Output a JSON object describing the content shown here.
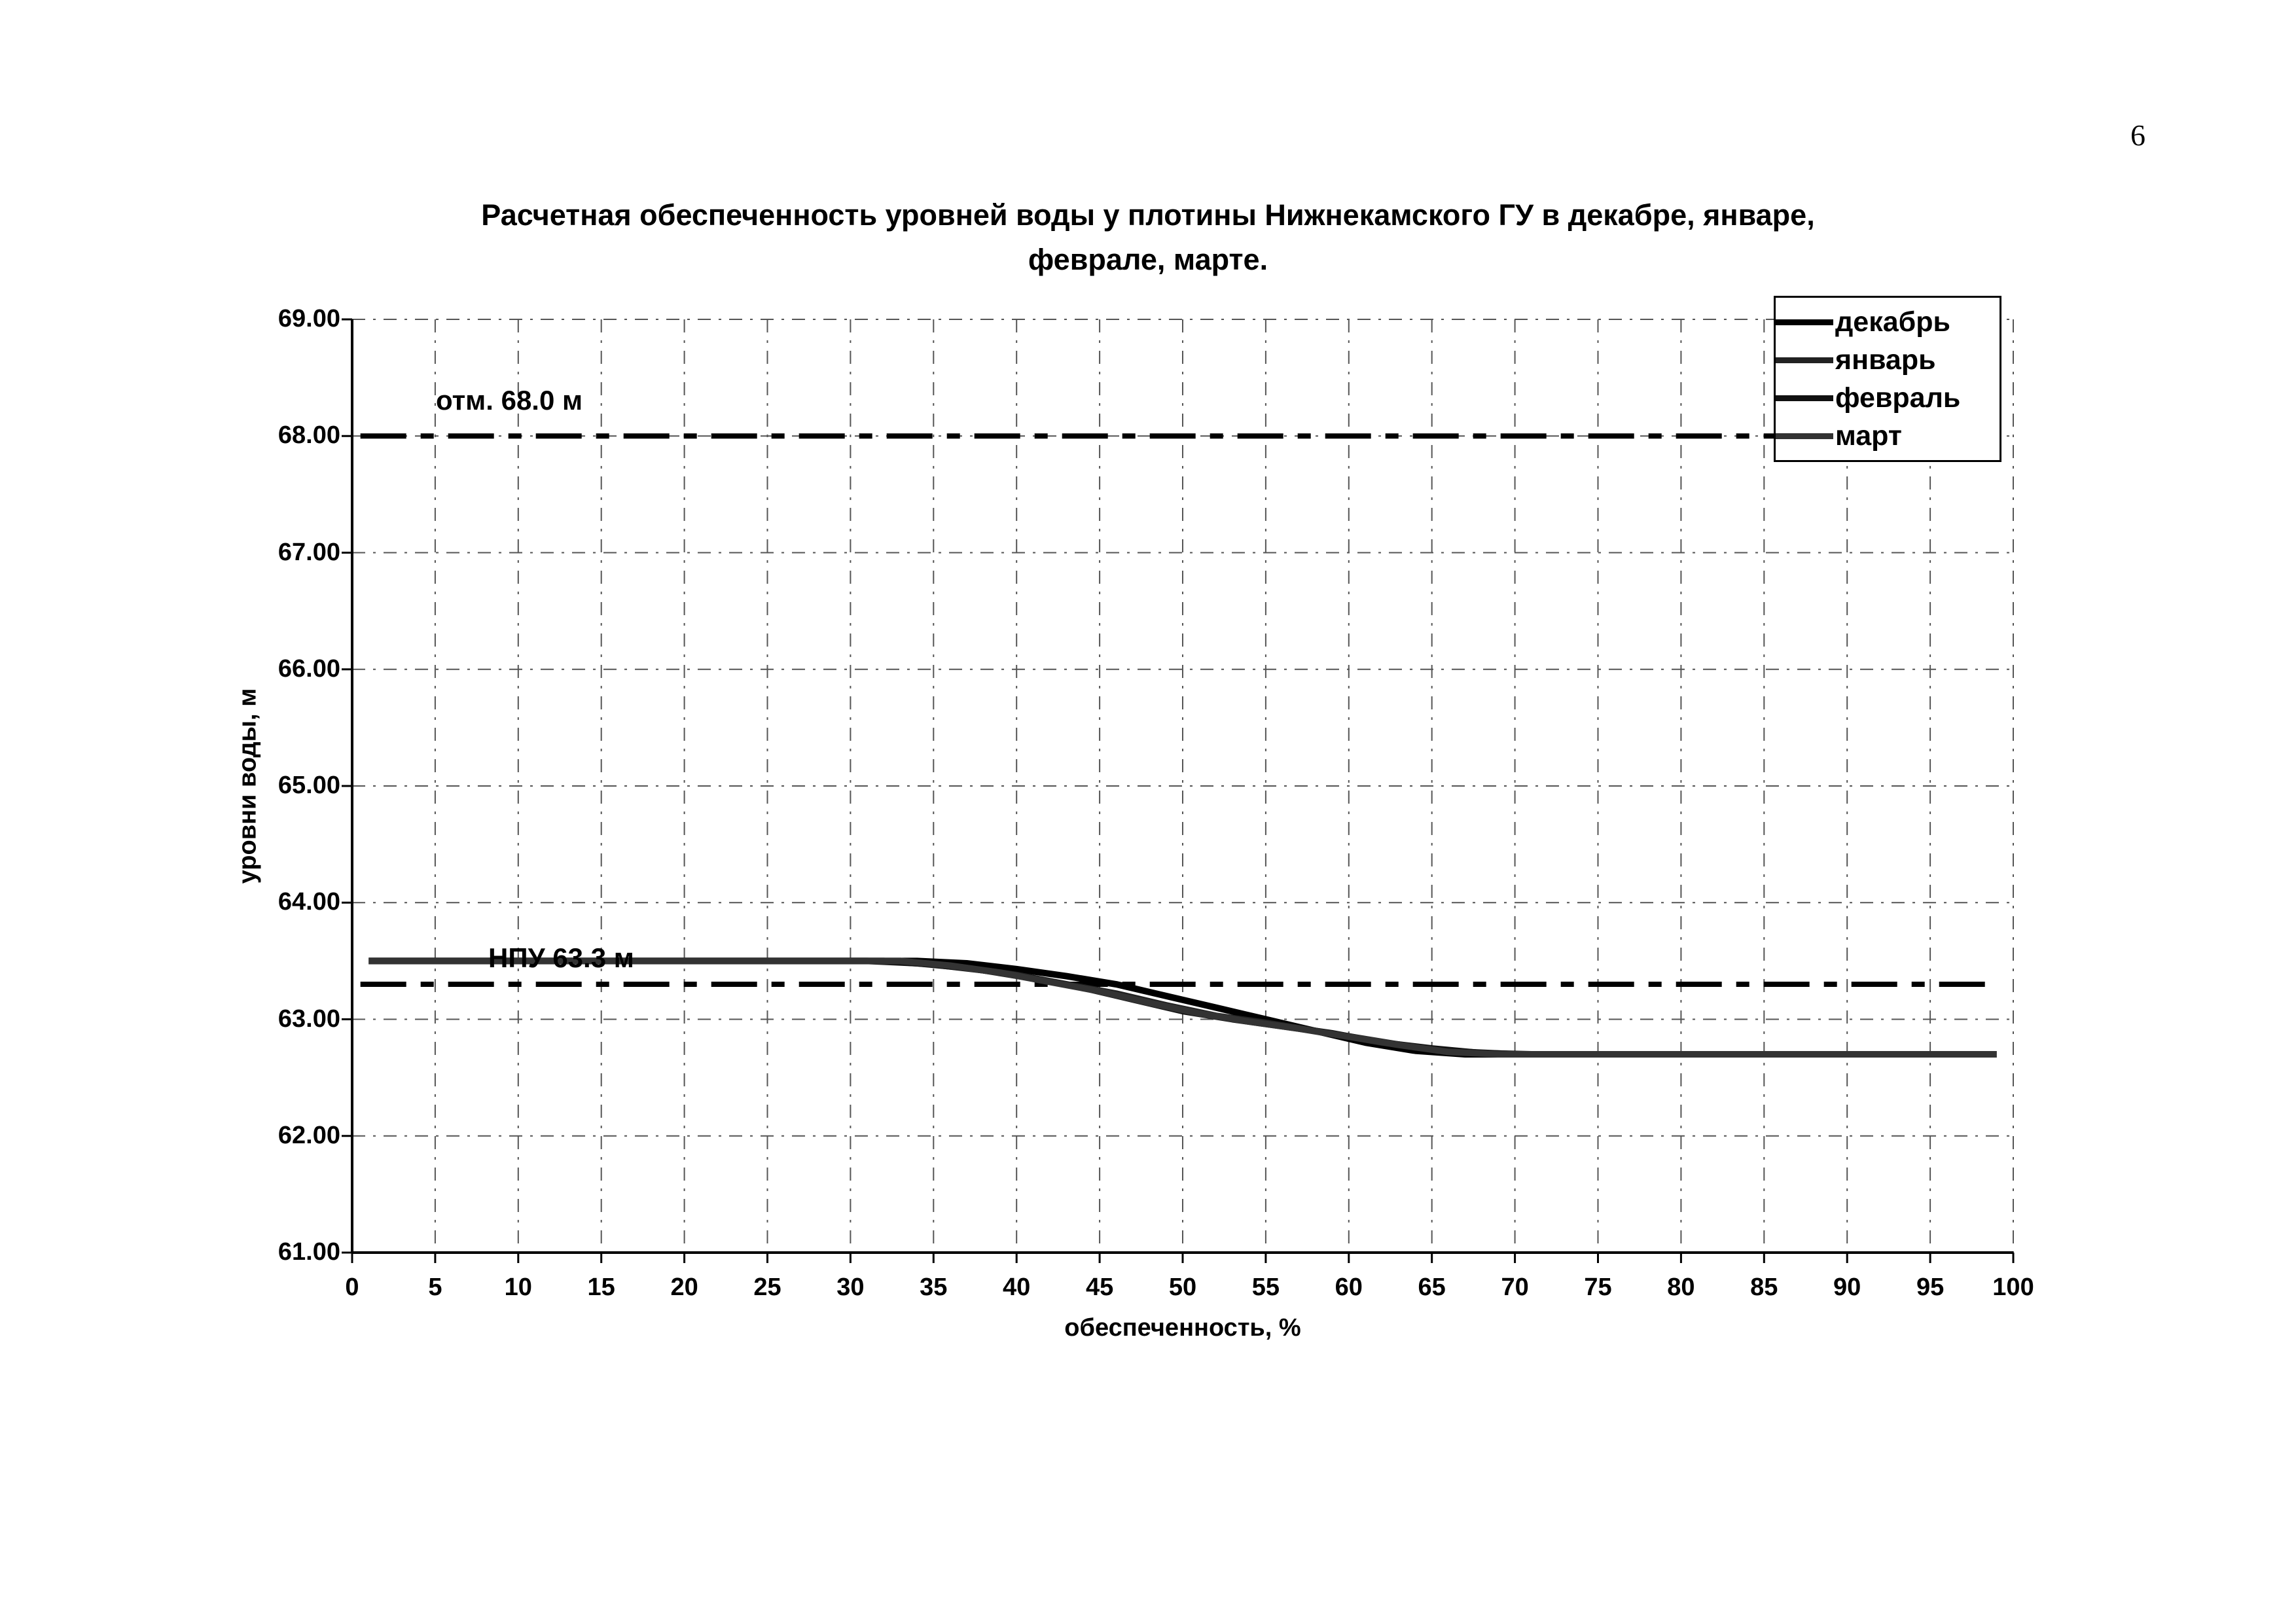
{
  "page": {
    "number": "6"
  },
  "chart": {
    "title_line1": "Расчетная обеспеченность уровней воды у плотины Нижнекамского ГУ в декабре, январе,",
    "title_line2": "феврале, марте.",
    "ylabel": "уровни воды, м",
    "xlabel": "обеспеченность, %",
    "annotations": {
      "upper": "отм. 68.0 м",
      "lower": "НПУ 63.3 м"
    }
  },
  "legend": {
    "items": [
      "декабрь",
      "январь",
      "февраль",
      "март"
    ]
  },
  "colors": {
    "axis": "#000000",
    "grid": "#555555",
    "reference": "#000000"
  },
  "chart_data": {
    "type": "line",
    "title": "Расчетная обеспеченность уровней воды у плотины Нижнекамского ГУ в декабре, январе, феврале, марте.",
    "xlabel": "обеспеченность, %",
    "ylabel": "уровни воды, м",
    "xlim": [
      0,
      100
    ],
    "ylim": [
      61,
      69
    ],
    "x_ticks": [
      0,
      5,
      10,
      15,
      20,
      25,
      30,
      35,
      40,
      45,
      50,
      55,
      60,
      65,
      70,
      75,
      80,
      85,
      90,
      95,
      100
    ],
    "x_tick_labels": [
      "0",
      "5",
      "10",
      "15",
      "20",
      "25",
      "30",
      "35",
      "40",
      "45",
      "50",
      "55",
      "60",
      "65",
      "70",
      "75",
      "80",
      "85",
      "90",
      "95",
      "100"
    ],
    "y_ticks": [
      61,
      62,
      63,
      64,
      65,
      66,
      67,
      68,
      69
    ],
    "y_tick_labels": [
      "61.00",
      "62.00",
      "63.00",
      "64.00",
      "65.00",
      "66.00",
      "67.00",
      "68.00",
      "69.00"
    ],
    "grid": "dashed, both axes",
    "legend_position": "top-right",
    "reference_lines": [
      {
        "label": "отм. 68.0 м",
        "y": 68.0,
        "style": "dash-dot thick black"
      },
      {
        "label": "НПУ 63.3 м",
        "y": 63.3,
        "style": "dash-dot thick black"
      }
    ],
    "series": [
      {
        "name": "декабрь",
        "color": "#000000",
        "x": [
          1,
          30,
          34,
          37,
          40,
          43,
          46,
          49,
          52,
          55,
          58,
          61,
          64,
          67,
          99
        ],
        "y": [
          63.5,
          63.5,
          63.5,
          63.48,
          63.43,
          63.37,
          63.3,
          63.2,
          63.1,
          63.0,
          62.9,
          62.8,
          62.73,
          62.7,
          62.7
        ]
      },
      {
        "name": "январь",
        "color": "#222222",
        "x": [
          1,
          31,
          34,
          37,
          40,
          43,
          46,
          49,
          52,
          55,
          58,
          61,
          64,
          67,
          70,
          99
        ],
        "y": [
          63.5,
          63.5,
          63.48,
          63.44,
          63.38,
          63.3,
          63.22,
          63.12,
          63.03,
          62.97,
          62.9,
          62.83,
          62.76,
          62.72,
          62.7,
          62.7
        ]
      },
      {
        "name": "февраль",
        "color": "#111111",
        "x": [
          1,
          32,
          35,
          38,
          41,
          44,
          47,
          50,
          53,
          56,
          59,
          62,
          65,
          68,
          71,
          99
        ],
        "y": [
          63.5,
          63.5,
          63.47,
          63.42,
          63.35,
          63.27,
          63.17,
          63.07,
          63.0,
          62.94,
          62.88,
          62.8,
          62.75,
          62.71,
          62.7,
          62.7
        ]
      },
      {
        "name": "март",
        "color": "#333333",
        "x": [
          1,
          33,
          36,
          39,
          42,
          45,
          48,
          51,
          54,
          57,
          60,
          63,
          66,
          69,
          99
        ],
        "y": [
          63.5,
          63.5,
          63.46,
          63.4,
          63.32,
          63.24,
          63.14,
          63.05,
          62.98,
          62.92,
          62.85,
          62.78,
          62.72,
          62.7,
          62.7
        ]
      }
    ]
  }
}
